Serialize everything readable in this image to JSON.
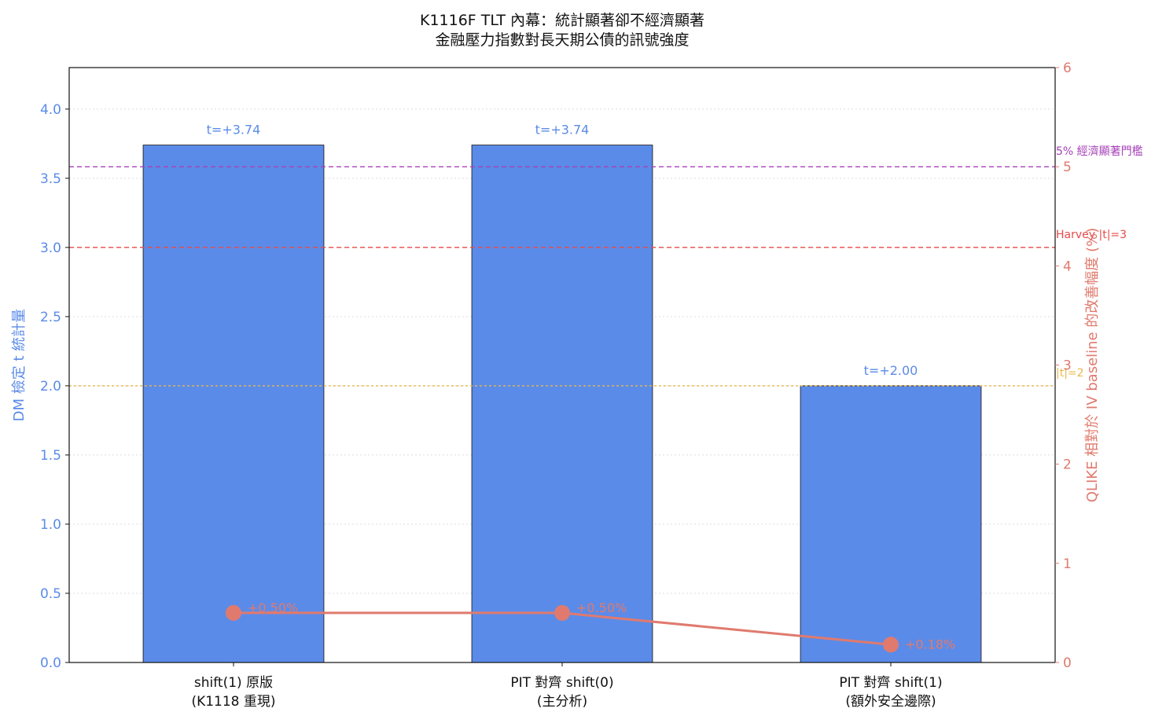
{
  "chart_data": {
    "type": "bar",
    "title_lines": [
      "K1116F TLT 內幕：統計顯著卻不經濟顯著",
      "金融壓力指數對長天期公債的訊號強度"
    ],
    "categories": [
      [
        "shift(1) 原版",
        "(K1118 重現)"
      ],
      [
        "PIT 對齊 shift(0)",
        "(主分析)"
      ],
      [
        "PIT 對齊 shift(1)",
        "(額外安全邊際)"
      ]
    ],
    "ylabel_left": "DM 檢定 t 統計量",
    "ylabel_right": "QLIKE 相對於 IV baseline 的改善幅度 (%)",
    "ylim_left": [
      0,
      4.3
    ],
    "yticks_left": [
      0.0,
      0.5,
      1.0,
      1.5,
      2.0,
      2.5,
      3.0,
      3.5,
      4.0
    ],
    "ytick_labels_left": [
      "0.0",
      "0.5",
      "1.0",
      "1.5",
      "2.0",
      "2.5",
      "3.0",
      "3.5",
      "4.0"
    ],
    "ylim_right": [
      0,
      6
    ],
    "yticks_right": [
      0,
      1,
      2,
      3,
      4,
      5,
      6
    ],
    "ytick_labels_right": [
      "0",
      "1",
      "2",
      "3",
      "4",
      "5",
      "6"
    ],
    "grid": "horizontal dotted",
    "series": [
      {
        "kind": "bar",
        "axis": "left",
        "values": [
          3.74,
          3.74,
          2.0
        ],
        "labels": [
          "t=+3.74",
          "t=+3.74",
          "t=+2.00"
        ],
        "color": "#5b8be8"
      },
      {
        "kind": "line",
        "axis": "right",
        "values": [
          0.5,
          0.5,
          0.18
        ],
        "labels": [
          "+0.50%",
          "+0.50%",
          "+0.18%"
        ],
        "color": "#e07a6e"
      }
    ],
    "reference_lines": [
      {
        "axis": "right",
        "value": 5,
        "label": "5% 經濟顯著門檻",
        "color": "#a640b8"
      },
      {
        "axis": "left",
        "value": 3.0,
        "label": "Harvey |t|=3",
        "color": "#e84a4a"
      },
      {
        "axis": "left",
        "value": 2.0,
        "label": "|t|=2",
        "color": "#e8b84a"
      }
    ]
  }
}
